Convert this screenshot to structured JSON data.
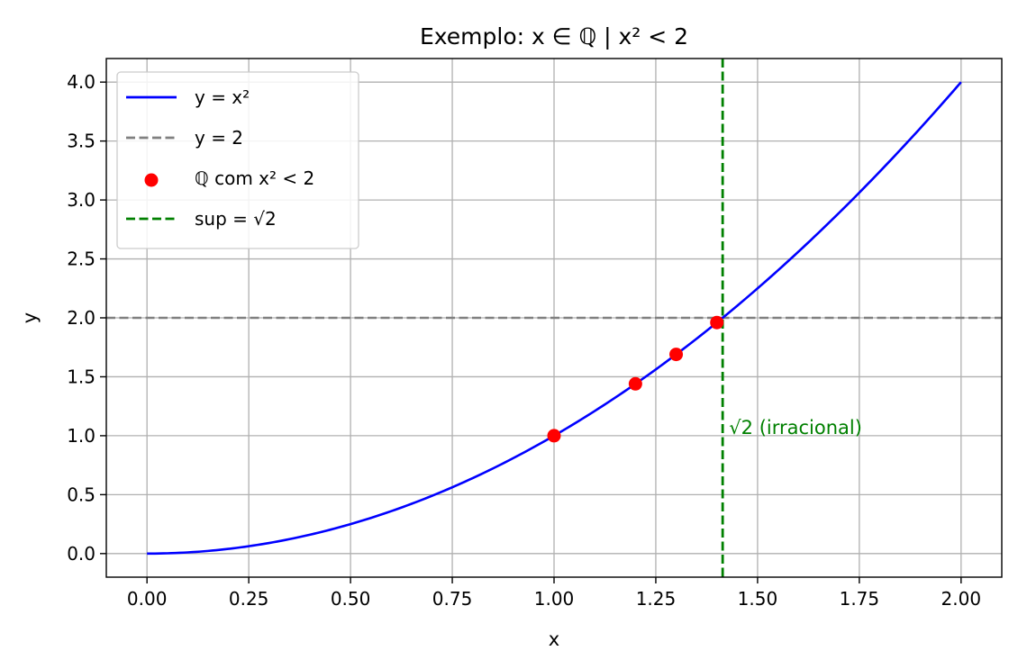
{
  "chart_data": {
    "type": "line",
    "title": "Exemplo: x ∈ ℚ | x² < 2",
    "xlabel": "x",
    "ylabel": "y",
    "xlim": [
      -0.1,
      2.1
    ],
    "ylim": [
      -0.2,
      4.2
    ],
    "xticks": [
      0.0,
      0.25,
      0.5,
      0.75,
      1.0,
      1.25,
      1.5,
      1.75,
      2.0
    ],
    "xtick_labels": [
      "0.00",
      "0.25",
      "0.50",
      "0.75",
      "1.00",
      "1.25",
      "1.50",
      "1.75",
      "2.00"
    ],
    "yticks": [
      0.0,
      0.5,
      1.0,
      1.5,
      2.0,
      2.5,
      3.0,
      3.5,
      4.0
    ],
    "ytick_labels": [
      "0.0",
      "0.5",
      "1.0",
      "1.5",
      "2.0",
      "2.5",
      "3.0",
      "3.5",
      "4.0"
    ],
    "grid": true,
    "legend_position": "top-left",
    "series": [
      {
        "name": "y = x²",
        "kind": "curve",
        "function": "x^2",
        "x_range": [
          0,
          2
        ],
        "color": "#0000ff",
        "style": "solid"
      },
      {
        "name": "y = 2",
        "kind": "hline",
        "y": 2,
        "color": "#808080",
        "style": "dashed"
      },
      {
        "name": "ℚ com x² < 2",
        "kind": "scatter",
        "color": "#ff0000",
        "points": [
          {
            "x": 1.0,
            "y": 1.0
          },
          {
            "x": 1.2,
            "y": 1.44
          },
          {
            "x": 1.3,
            "y": 1.69
          },
          {
            "x": 1.4,
            "y": 1.96
          }
        ]
      },
      {
        "name": "sup = √2",
        "kind": "vline",
        "x": 1.41421356,
        "color": "#008000",
        "style": "dashed"
      }
    ],
    "annotations": [
      {
        "text": "√2 (irracional)",
        "x": 1.43,
        "y": 1.0,
        "color": "#008000"
      }
    ]
  }
}
